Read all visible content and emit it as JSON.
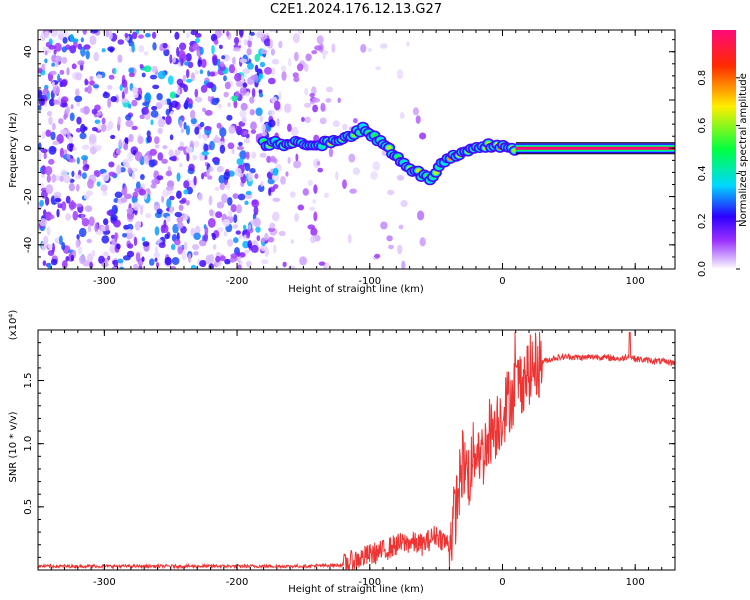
{
  "title": "C2E1.2024.176.12.13.G27",
  "chart_data": [
    {
      "type": "heatmap",
      "title": "C2E1.2024.176.12.13.G27",
      "xlabel": "Height of straight line (km)",
      "ylabel": "Frequency (Hz)",
      "xlim": [
        -350,
        130
      ],
      "ylim": [
        -50,
        49
      ],
      "x_ticks": [
        -300,
        -200,
        -100,
        0,
        100
      ],
      "y_ticks": [
        -40,
        -20,
        0,
        20,
        40
      ],
      "colorbar": {
        "label": "Normalized spectral amplitude",
        "range": [
          0.0,
          1.0
        ],
        "ticks": [
          0.0,
          0.2,
          0.4,
          0.6,
          0.8
        ],
        "colors": [
          "#ffffff",
          "#b04bff",
          "#2b00ff",
          "#00d9ff",
          "#00ff40",
          "#ffee00",
          "#ff2a00",
          "#ff0a78"
        ]
      },
      "ridge": {
        "description_points": [
          {
            "x": -180,
            "y": 2
          },
          {
            "x": -130,
            "y": 2
          },
          {
            "x": -105,
            "y": 8
          },
          {
            "x": -90,
            "y": 2
          },
          {
            "x": -70,
            "y": -8
          },
          {
            "x": -55,
            "y": -13
          },
          {
            "x": -45,
            "y": -6
          },
          {
            "x": -30,
            "y": -2
          },
          {
            "x": -10,
            "y": 1
          },
          {
            "x": 0,
            "y": 1
          },
          {
            "x": 10,
            "y": 0
          },
          {
            "x": 130,
            "y": 0
          }
        ]
      }
    },
    {
      "type": "line",
      "xlabel": "Height of straight line (km)",
      "ylabel": "SNR (10 * v/v)",
      "y_multiplier": "(x10⁴)",
      "xlim": [
        -350,
        130
      ],
      "ylim": [
        0,
        1.9
      ],
      "x_ticks": [
        -300,
        -200,
        -100,
        0,
        100
      ],
      "y_ticks": [
        0.5,
        1.0,
        1.5
      ],
      "color": "#ee3333",
      "series": [
        {
          "x": [
            -350,
            -250,
            -150,
            -120,
            -110,
            -100,
            -90,
            -80,
            -70,
            -60,
            -50,
            -40,
            -35,
            -30,
            -25,
            -20,
            -15,
            -10,
            -5,
            0,
            10,
            20,
            30,
            40,
            50,
            60,
            70,
            80,
            90,
            95,
            100,
            110,
            120,
            130
          ],
          "values": [
            0.03,
            0.03,
            0.03,
            0.04,
            0.08,
            0.12,
            0.15,
            0.2,
            0.22,
            0.2,
            0.28,
            0.2,
            0.5,
            0.85,
            0.75,
            1.0,
            0.9,
            1.1,
            1.15,
            1.25,
            1.45,
            1.58,
            1.65,
            1.68,
            1.69,
            1.68,
            1.69,
            1.68,
            1.67,
            1.7,
            1.67,
            1.66,
            1.65,
            1.64
          ]
        }
      ]
    }
  ]
}
